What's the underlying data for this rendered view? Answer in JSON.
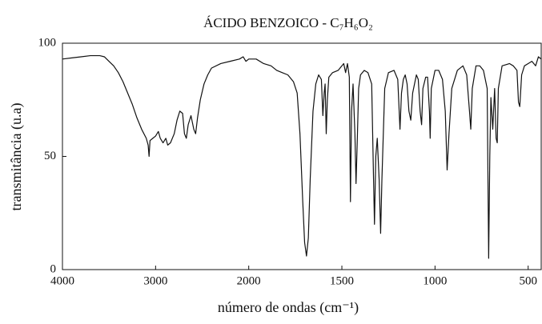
{
  "chart_data": {
    "type": "line",
    "title": "ÁCIDO BENZOICO - C₇H₆O₂",
    "x_label": "número de ondas (cm⁻¹)",
    "y_label": "transmitância (u.a)",
    "xlim": [
      4000,
      430
    ],
    "xticks": [
      4000,
      3000,
      2000,
      1500,
      1000,
      500
    ],
    "ylim": [
      0,
      100
    ],
    "yticks": [
      0,
      50,
      100
    ],
    "grid": false,
    "series": [
      {
        "color": "#111111",
        "x": [
          4000,
          3900,
          3800,
          3700,
          3600,
          3550,
          3500,
          3450,
          3400,
          3350,
          3300,
          3250,
          3200,
          3150,
          3100,
          3080,
          3070,
          3060,
          3030,
          3000,
          2970,
          2950,
          2920,
          2890,
          2870,
          2840,
          2800,
          2770,
          2740,
          2710,
          2690,
          2670,
          2650,
          2620,
          2590,
          2570,
          2550,
          2520,
          2480,
          2440,
          2400,
          2300,
          2200,
          2100,
          2060,
          2030,
          2000,
          1960,
          1920,
          1880,
          1850,
          1820,
          1790,
          1760,
          1740,
          1725,
          1710,
          1700,
          1690,
          1680,
          1670,
          1655,
          1640,
          1625,
          1610,
          1602,
          1595,
          1590,
          1584,
          1578,
          1570,
          1550,
          1520,
          1500,
          1490,
          1480,
          1470,
          1460,
          1454,
          1448,
          1440,
          1430,
          1424,
          1418,
          1410,
          1400,
          1380,
          1360,
          1340,
          1330,
          1325,
          1318,
          1310,
          1300,
          1292,
          1285,
          1270,
          1250,
          1220,
          1200,
          1188,
          1180,
          1170,
          1160,
          1150,
          1140,
          1130,
          1120,
          1100,
          1090,
          1080,
          1072,
          1065,
          1050,
          1040,
          1030,
          1026,
          1020,
          1000,
          980,
          960,
          945,
          935,
          925,
          910,
          880,
          850,
          830,
          815,
          808,
          800,
          780,
          760,
          740,
          720,
          712,
          706,
          700,
          690,
          680,
          672,
          666,
          660,
          640,
          600,
          580,
          560,
          552,
          545,
          535,
          520,
          500,
          480,
          460,
          445,
          430
        ],
        "values": [
          93,
          93.5,
          94,
          94.5,
          94.5,
          94,
          92,
          90,
          87,
          83,
          78,
          73,
          67,
          62,
          58,
          55,
          50,
          57,
          58,
          59,
          61,
          58,
          56,
          58,
          55,
          56,
          60,
          66,
          70,
          69,
          60,
          58,
          64,
          68,
          62,
          60,
          67,
          75,
          82,
          86,
          89,
          91,
          92,
          93,
          94,
          92,
          93,
          93,
          91,
          90,
          88,
          87,
          86,
          83,
          78,
          60,
          30,
          12,
          6,
          14,
          40,
          70,
          82,
          86,
          84,
          68,
          78,
          82,
          60,
          75,
          85,
          87,
          88,
          90,
          91,
          87,
          91,
          85,
          30,
          70,
          82,
          60,
          38,
          55,
          80,
          86,
          88,
          87,
          82,
          40,
          20,
          50,
          58,
          40,
          16,
          40,
          80,
          87,
          88,
          84,
          62,
          78,
          84,
          86,
          82,
          70,
          66,
          78,
          86,
          84,
          70,
          64,
          80,
          85,
          85,
          70,
          58,
          80,
          88,
          88,
          84,
          70,
          44,
          60,
          80,
          88,
          90,
          86,
          70,
          62,
          80,
          90,
          90,
          88,
          80,
          5,
          50,
          76,
          62,
          80,
          58,
          56,
          80,
          90,
          91,
          90,
          88,
          74,
          72,
          86,
          90,
          91,
          92,
          90,
          94,
          93
        ]
      }
    ]
  }
}
